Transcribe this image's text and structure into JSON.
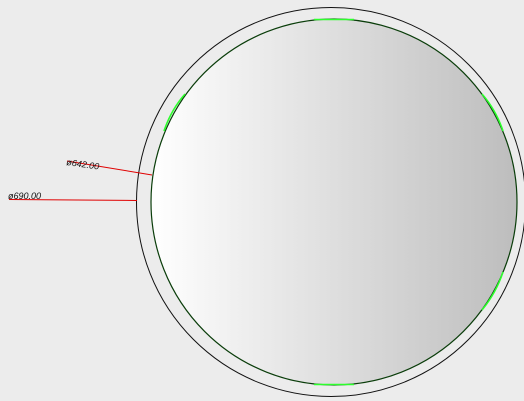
{
  "drawing": {
    "dimensions": [
      {
        "label": "ø642.00",
        "value": 642.0
      },
      {
        "label": "ø690.00",
        "value": 690.0
      }
    ],
    "colors": {
      "background": "#ececec",
      "outline": "#111111",
      "inner_outline": "#0a3d0a",
      "highlight_segments": "#2cff2c",
      "leader_lines": "#e00000",
      "gradient_light": "#ffffff",
      "gradient_dark": "#bdbdbd"
    }
  }
}
